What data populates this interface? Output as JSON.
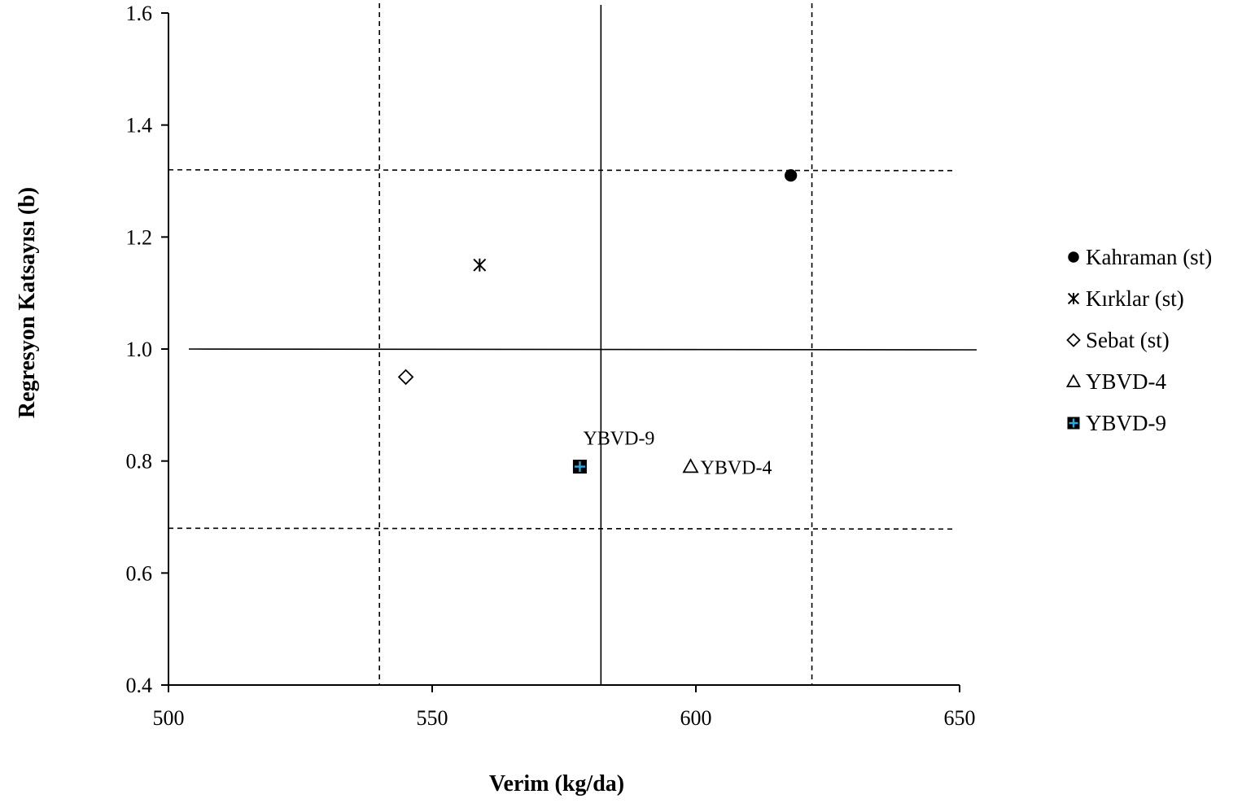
{
  "chart_data": {
    "type": "scatter",
    "xlabel": "Verim (kg/da)",
    "ylabel": "Regresyon Katsayısı (b)",
    "xlim": [
      500,
      650
    ],
    "ylim": [
      0.4,
      1.6
    ],
    "x_ticks": [
      "500",
      "550",
      "600",
      "650"
    ],
    "y_ticks": [
      "0.4",
      "0.6",
      "0.8",
      "1.0",
      "1.2",
      "1.4",
      "1.6"
    ],
    "grid": false,
    "legend_position": "right",
    "reference_lines": {
      "vertical_solid": 582,
      "vertical_dashed": [
        540,
        622
      ],
      "horizontal_solid": 1.0,
      "horizontal_dashed": [
        1.32,
        0.68
      ]
    },
    "series": [
      {
        "name": "Kahraman (st)",
        "marker": "filled-circle",
        "x": 618,
        "y": 1.31,
        "point_label": ""
      },
      {
        "name": "Kırklar (st)",
        "marker": "asterisk",
        "x": 559,
        "y": 1.15,
        "point_label": ""
      },
      {
        "name": "Sebat (st)",
        "marker": "diamond",
        "x": 545,
        "y": 0.95,
        "point_label": ""
      },
      {
        "name": "YBVD-4",
        "marker": "triangle",
        "x": 599,
        "y": 0.79,
        "point_label": "YBVD-4"
      },
      {
        "name": "YBVD-9",
        "marker": "square-plus",
        "x": 578,
        "y": 0.79,
        "point_label": "YBVD-9"
      }
    ],
    "colors": {
      "ink": "#000000",
      "square_plus": "#29abe2"
    }
  }
}
